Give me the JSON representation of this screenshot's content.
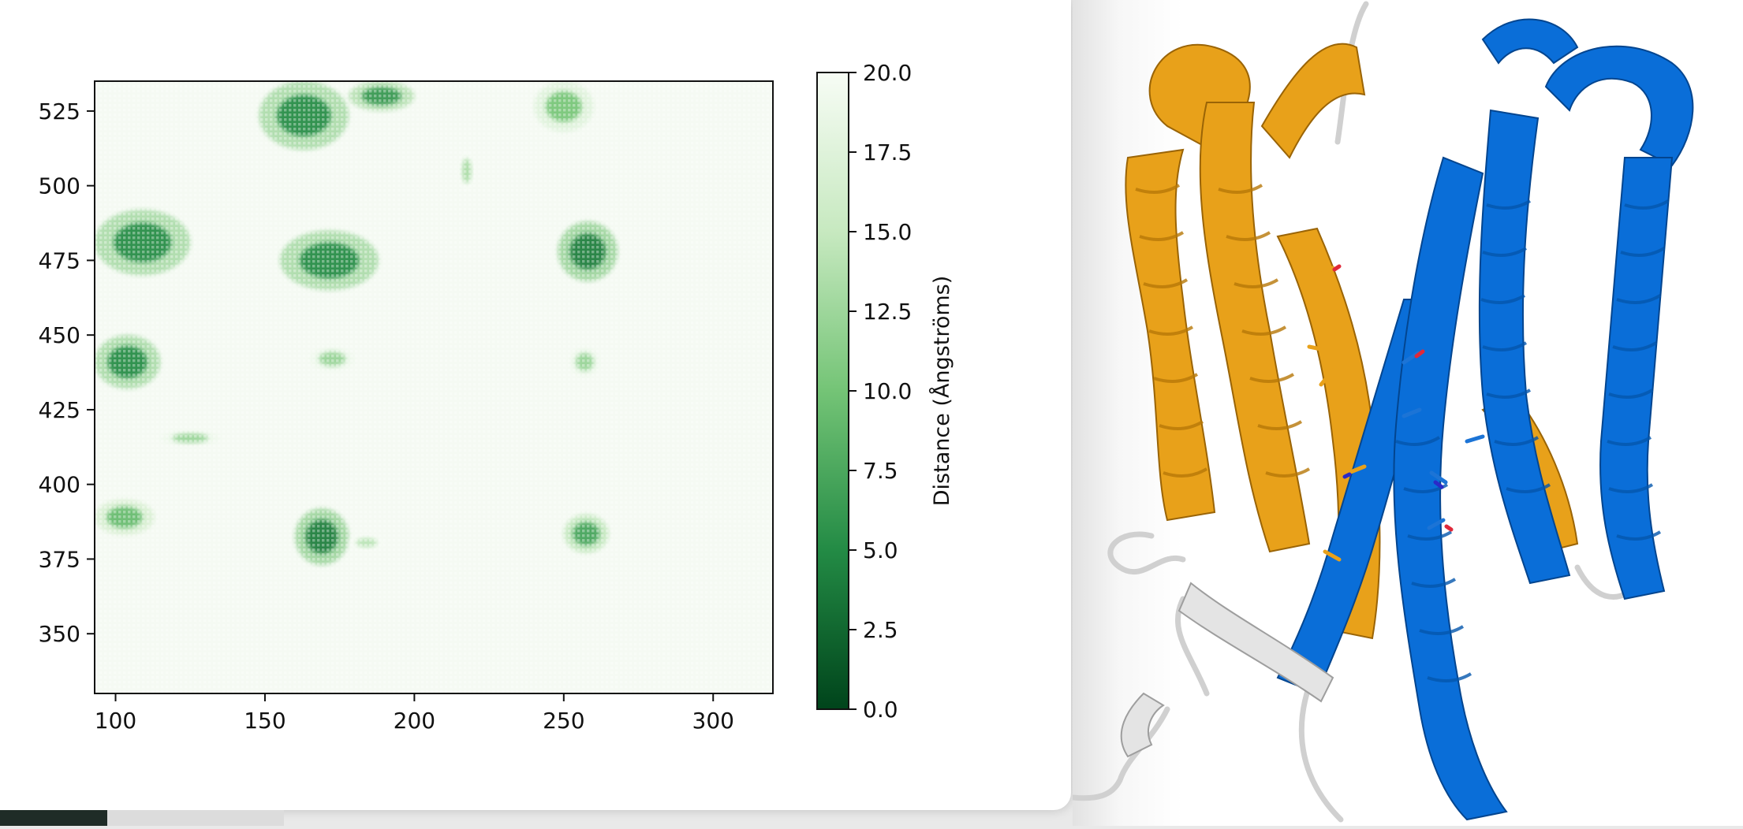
{
  "chart_data": {
    "type": "heatmap",
    "title": "",
    "xlabel": "",
    "ylabel": "",
    "xlim": [
      93,
      320
    ],
    "ylim": [
      330,
      535
    ],
    "x_ticks": [
      "100",
      "150",
      "200",
      "250",
      "300"
    ],
    "y_ticks": [
      "350",
      "375",
      "400",
      "425",
      "450",
      "475",
      "500",
      "525"
    ],
    "colormap": "Greens_r",
    "colorbar": {
      "label": "Distance (Ångströms)",
      "range": [
        0.0,
        20.0
      ],
      "ticks": [
        "0.0",
        "2.5",
        "5.0",
        "7.5",
        "10.0",
        "12.5",
        "15.0",
        "17.5",
        "20.0"
      ]
    },
    "contact_regions": [
      {
        "x_range": [
          148,
          178
        ],
        "y_range": [
          512,
          535
        ],
        "min_distance": 5
      },
      {
        "x_range": [
          178,
          200
        ],
        "y_range": [
          525,
          535
        ],
        "min_distance": 6
      },
      {
        "x_range": [
          93,
          125
        ],
        "y_range": [
          470,
          492
        ],
        "min_distance": 5
      },
      {
        "x_range": [
          155,
          188
        ],
        "y_range": [
          465,
          485
        ],
        "min_distance": 5
      },
      {
        "x_range": [
          248,
          268
        ],
        "y_range": [
          468,
          488
        ],
        "min_distance": 4
      },
      {
        "x_range": [
          93,
          115
        ],
        "y_range": [
          432,
          450
        ],
        "min_distance": 5
      },
      {
        "x_range": [
          160,
          178
        ],
        "y_range": [
          373,
          392
        ],
        "min_distance": 4
      },
      {
        "x_range": [
          93,
          113
        ],
        "y_range": [
          383,
          395
        ],
        "min_distance": 9
      },
      {
        "x_range": [
          250,
          265
        ],
        "y_range": [
          377,
          390
        ],
        "min_distance": 7
      },
      {
        "x_range": [
          240,
          260
        ],
        "y_range": [
          518,
          535
        ],
        "min_distance": 10
      },
      {
        "x_range": [
          165,
          180
        ],
        "y_range": [
          438,
          446
        ],
        "min_distance": 12
      },
      {
        "x_range": [
          252,
          262
        ],
        "y_range": [
          436,
          446
        ],
        "min_distance": 12
      },
      {
        "x_range": [
          115,
          135
        ],
        "y_range": [
          413,
          418
        ],
        "min_distance": 12
      },
      {
        "x_range": [
          215,
          220
        ],
        "y_range": [
          498,
          512
        ],
        "min_distance": 13
      },
      {
        "x_range": [
          178,
          190
        ],
        "y_range": [
          378,
          383
        ],
        "min_distance": 14
      }
    ]
  },
  "protein_view": {
    "chain_a_color": "#e8a11a",
    "chain_b_color": "#0a6ed8",
    "loop_color": "#d4d4d4"
  }
}
